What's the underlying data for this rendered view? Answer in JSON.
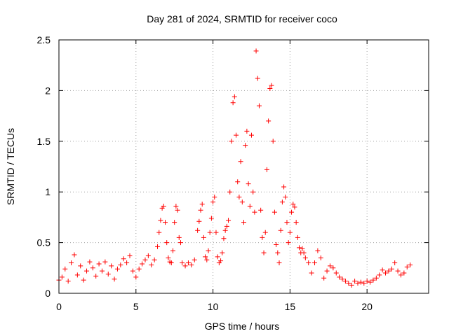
{
  "chart_data": {
    "type": "scatter",
    "title": "Day 281 of 2024, SRMTID for receiver coco",
    "xlabel": "GPS time / hours",
    "ylabel": "SRMTID / TECUs",
    "xlim": [
      0,
      24
    ],
    "ylim": [
      0,
      2.5
    ],
    "x_ticks": [
      0,
      5,
      10,
      15,
      20
    ],
    "x_tick_labels": [
      "0",
      "5",
      "10",
      "15",
      "20"
    ],
    "y_ticks": [
      0,
      0.5,
      1,
      1.5,
      2,
      2.5
    ],
    "y_tick_labels": [
      "0",
      "0.5",
      "1",
      "1.5",
      "2",
      "2.5"
    ],
    "grid": true,
    "marker": "+",
    "color": "#ff0000",
    "series": [
      {
        "name": "SRMTID",
        "x": [
          0.0,
          0.2,
          0.4,
          0.6,
          0.8,
          1.0,
          1.2,
          1.4,
          1.6,
          1.8,
          2.0,
          2.2,
          2.4,
          2.6,
          2.8,
          3.0,
          3.2,
          3.4,
          3.6,
          3.8,
          4.0,
          4.2,
          4.4,
          4.6,
          4.8,
          5.0,
          5.2,
          5.4,
          5.6,
          5.8,
          6.0,
          6.2,
          6.4,
          6.5,
          6.6,
          6.7,
          6.8,
          6.9,
          7.0,
          7.1,
          7.2,
          7.3,
          7.4,
          7.5,
          7.6,
          7.7,
          7.8,
          7.9,
          8.0,
          8.2,
          8.4,
          8.6,
          8.8,
          9.0,
          9.1,
          9.2,
          9.3,
          9.4,
          9.5,
          9.6,
          9.7,
          9.8,
          9.9,
          10.0,
          10.1,
          10.2,
          10.3,
          10.4,
          10.5,
          10.6,
          10.7,
          10.8,
          10.9,
          11.0,
          11.1,
          11.2,
          11.3,
          11.4,
          11.5,
          11.6,
          11.7,
          11.8,
          11.9,
          12.0,
          12.1,
          12.2,
          12.3,
          12.4,
          12.5,
          12.6,
          12.7,
          12.8,
          12.9,
          13.0,
          13.1,
          13.2,
          13.3,
          13.4,
          13.5,
          13.6,
          13.7,
          13.8,
          13.9,
          14.0,
          14.1,
          14.2,
          14.3,
          14.4,
          14.5,
          14.6,
          14.7,
          14.8,
          14.9,
          15.0,
          15.1,
          15.2,
          15.3,
          15.4,
          15.5,
          15.6,
          15.7,
          15.8,
          15.9,
          16.0,
          16.2,
          16.4,
          16.6,
          16.8,
          17.0,
          17.2,
          17.4,
          17.6,
          17.8,
          18.0,
          18.2,
          18.4,
          18.6,
          18.8,
          19.0,
          19.2,
          19.4,
          19.6,
          19.8,
          20.0,
          20.2,
          20.4,
          20.6,
          20.8,
          21.0,
          21.2,
          21.4,
          21.6,
          21.8,
          22.0,
          22.2,
          22.4,
          22.6,
          22.8
        ],
        "y": [
          0.13,
          0.16,
          0.24,
          0.12,
          0.3,
          0.38,
          0.18,
          0.27,
          0.13,
          0.22,
          0.31,
          0.25,
          0.17,
          0.29,
          0.22,
          0.31,
          0.19,
          0.27,
          0.14,
          0.24,
          0.28,
          0.34,
          0.3,
          0.37,
          0.22,
          0.16,
          0.24,
          0.29,
          0.33,
          0.37,
          0.28,
          0.33,
          0.46,
          0.6,
          0.72,
          0.84,
          0.86,
          0.7,
          0.5,
          0.35,
          0.31,
          0.3,
          0.42,
          0.7,
          0.86,
          0.82,
          0.55,
          0.5,
          0.3,
          0.27,
          0.3,
          0.28,
          0.33,
          0.62,
          0.71,
          0.82,
          0.88,
          0.55,
          0.36,
          0.33,
          0.42,
          0.6,
          0.74,
          0.9,
          0.95,
          0.6,
          0.36,
          0.3,
          0.32,
          0.4,
          0.54,
          0.62,
          0.66,
          0.72,
          1.0,
          1.5,
          1.88,
          1.94,
          1.56,
          1.1,
          0.95,
          1.3,
          0.9,
          0.7,
          1.46,
          1.6,
          1.08,
          0.86,
          1.56,
          1.0,
          0.8,
          2.39,
          2.12,
          1.85,
          0.82,
          0.55,
          0.4,
          0.6,
          1.22,
          1.7,
          2.02,
          2.05,
          1.5,
          0.8,
          0.48,
          0.4,
          0.3,
          0.62,
          0.9,
          1.05,
          0.95,
          0.7,
          0.5,
          0.6,
          0.8,
          0.88,
          0.85,
          0.7,
          0.55,
          0.45,
          0.4,
          0.44,
          0.4,
          0.35,
          0.3,
          0.2,
          0.3,
          0.42,
          0.35,
          0.15,
          0.22,
          0.27,
          0.25,
          0.2,
          0.16,
          0.14,
          0.12,
          0.1,
          0.08,
          0.12,
          0.1,
          0.11,
          0.1,
          0.12,
          0.11,
          0.13,
          0.15,
          0.18,
          0.23,
          0.2,
          0.22,
          0.24,
          0.3,
          0.22,
          0.18,
          0.2,
          0.26,
          0.28
        ]
      }
    ]
  }
}
